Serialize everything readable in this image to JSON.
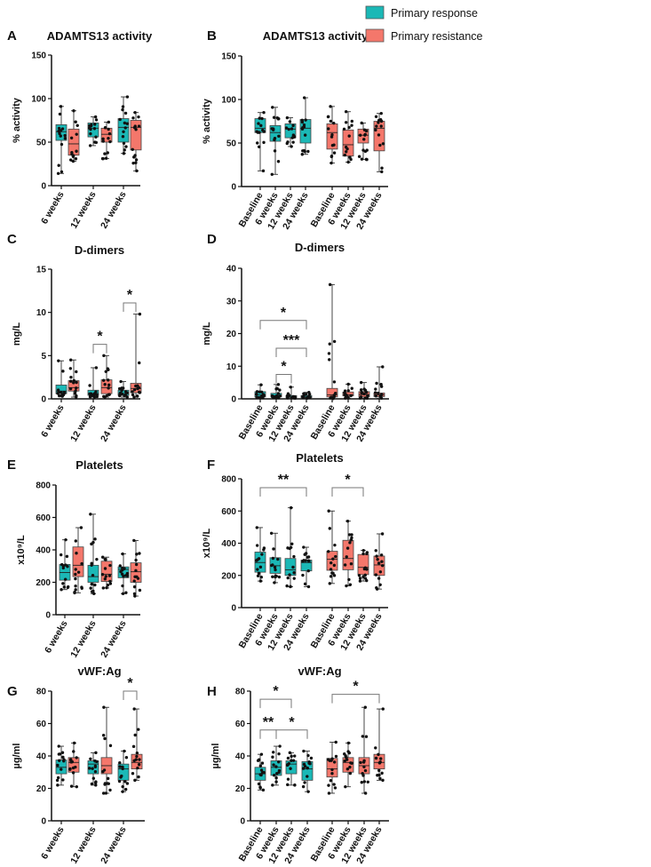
{
  "legend": [
    {
      "label": "Primary response",
      "color": "#1BB8B6"
    },
    {
      "label": "Primary resistance",
      "color": "#F4776B"
    }
  ],
  "chart_data": [
    {
      "panel": "A",
      "type": "box",
      "title": "ADAMTS13 activity",
      "ylabel": "% activity",
      "ylim": [
        0,
        150
      ],
      "yticks": [
        0,
        50,
        100,
        150
      ],
      "boxes": [
        {
          "label": "6 weeks",
          "group": "response",
          "min": 14,
          "q1": 52,
          "median": 62,
          "q3": 70,
          "max": 91
        },
        {
          "label": "",
          "group": "resistance",
          "min": 28,
          "q1": 35,
          "median": 48,
          "q3": 65,
          "max": 86
        },
        {
          "label": "12 weeks",
          "group": "response",
          "min": 46,
          "q1": 56,
          "median": 66,
          "q3": 72,
          "max": 79
        },
        {
          "label": "",
          "group": "resistance",
          "min": 31,
          "q1": 50,
          "median": 59,
          "q3": 66,
          "max": 73
        },
        {
          "label": "24 weeks",
          "group": "response",
          "min": 37,
          "q1": 50,
          "median": 67,
          "q3": 77,
          "max": 102
        },
        {
          "label": "",
          "group": "resistance",
          "min": 17,
          "q1": 41,
          "median": 67,
          "q3": 75,
          "max": 84
        }
      ],
      "significance": []
    },
    {
      "panel": "B",
      "type": "box",
      "title": "ADAMTS13 activity",
      "ylabel": "% activity",
      "ylim": [
        0,
        150
      ],
      "yticks": [
        0,
        50,
        100,
        150
      ],
      "boxes": [
        {
          "label": "Baseline",
          "group": "response",
          "min": 18,
          "q1": 62,
          "median": 67,
          "q3": 78,
          "max": 85
        },
        {
          "label": "6 weeks",
          "group": "response",
          "min": 14,
          "q1": 52,
          "median": 62,
          "q3": 70,
          "max": 91
        },
        {
          "label": "12 weeks",
          "group": "response",
          "min": 46,
          "q1": 56,
          "median": 66,
          "q3": 72,
          "max": 79
        },
        {
          "label": "24 weeks",
          "group": "response",
          "min": 37,
          "q1": 50,
          "median": 67,
          "q3": 77,
          "max": 102
        },
        {
          "label": "Baseline",
          "group": "resistance",
          "min": 27,
          "q1": 43,
          "median": 62,
          "q3": 72,
          "max": 92
        },
        {
          "label": "6 weeks",
          "group": "resistance",
          "min": 28,
          "q1": 35,
          "median": 48,
          "q3": 65,
          "max": 86
        },
        {
          "label": "12 weeks",
          "group": "resistance",
          "min": 31,
          "q1": 50,
          "median": 59,
          "q3": 66,
          "max": 73
        },
        {
          "label": "24 weeks",
          "group": "resistance",
          "min": 17,
          "q1": 41,
          "median": 67,
          "q3": 75,
          "max": 84
        }
      ],
      "significance": []
    },
    {
      "panel": "C",
      "type": "box",
      "title": "D-dimers",
      "ylabel": "mg/L",
      "ylim": [
        0,
        15
      ],
      "yticks": [
        0,
        5,
        10,
        15
      ],
      "boxes": [
        {
          "label": "6 weeks",
          "group": "response",
          "min": 0.3,
          "q1": 0.6,
          "median": 0.9,
          "q3": 1.6,
          "max": 4.4
        },
        {
          "label": "",
          "group": "resistance",
          "min": 0.2,
          "q1": 0.9,
          "median": 1.3,
          "q3": 2.1,
          "max": 4.5
        },
        {
          "label": "12 weeks",
          "group": "response",
          "min": 0.2,
          "q1": 0.4,
          "median": 0.6,
          "q3": 1.0,
          "max": 3.6
        },
        {
          "label": "",
          "group": "resistance",
          "min": 0.2,
          "q1": 0.6,
          "median": 1.3,
          "q3": 2.2,
          "max": 5.0
        },
        {
          "label": "24 weeks",
          "group": "response",
          "min": 0.2,
          "q1": 0.4,
          "median": 0.6,
          "q3": 1.0,
          "max": 2.0
        },
        {
          "label": "",
          "group": "resistance",
          "min": 0.2,
          "q1": 0.7,
          "median": 1.2,
          "q3": 1.8,
          "max": 9.8
        }
      ],
      "significance": [
        {
          "from": 2,
          "to": 3,
          "y": 6.3,
          "label": "*"
        },
        {
          "from": 4,
          "to": 5,
          "y": 11.1,
          "label": "*"
        }
      ]
    },
    {
      "panel": "D",
      "type": "box",
      "title": "D-dimers",
      "ylabel": "mg/L",
      "ylim": [
        0,
        40
      ],
      "yticks": [
        0,
        10,
        20,
        30,
        40
      ],
      "boxes": [
        {
          "label": "Baseline",
          "group": "response",
          "min": 0.3,
          "q1": 0.6,
          "median": 1.2,
          "q3": 2.2,
          "max": 4.3
        },
        {
          "label": "6 weeks",
          "group": "response",
          "min": 0.3,
          "q1": 0.6,
          "median": 1.0,
          "q3": 1.7,
          "max": 4.4
        },
        {
          "label": "12 weeks",
          "group": "response",
          "min": 0.2,
          "q1": 0.4,
          "median": 0.6,
          "q3": 1.0,
          "max": 3.6
        },
        {
          "label": "24 weeks",
          "group": "response",
          "min": 0.2,
          "q1": 0.4,
          "median": 0.6,
          "q3": 1.0,
          "max": 2.0
        },
        {
          "label": "Baseline",
          "group": "resistance",
          "min": 0.1,
          "q1": 0.6,
          "median": 1.2,
          "q3": 3.2,
          "max": 35
        },
        {
          "label": "6 weeks",
          "group": "resistance",
          "min": 0.2,
          "q1": 0.9,
          "median": 1.3,
          "q3": 2.1,
          "max": 4.5
        },
        {
          "label": "12 weeks",
          "group": "resistance",
          "min": 0.2,
          "q1": 0.6,
          "median": 1.3,
          "q3": 2.2,
          "max": 5.0
        },
        {
          "label": "24 weeks",
          "group": "resistance",
          "min": 0.2,
          "q1": 0.7,
          "median": 1.2,
          "q3": 1.8,
          "max": 9.8
        }
      ],
      "significance": [
        {
          "from": 0,
          "to": 3,
          "y": 24,
          "label": "*"
        },
        {
          "from": 1,
          "to": 3,
          "y": 15.5,
          "label": "***"
        },
        {
          "from": 1,
          "to": 2,
          "y": 7.5,
          "label": "*"
        }
      ]
    },
    {
      "panel": "E",
      "type": "box",
      "title": "Platelets",
      "ylabel": "x10⁹/L",
      "ylim": [
        0,
        800
      ],
      "yticks": [
        0,
        200,
        400,
        600,
        800
      ],
      "boxes": [
        {
          "label": "6 weeks",
          "group": "response",
          "min": 155,
          "q1": 213,
          "median": 260,
          "q3": 310,
          "max": 462
        },
        {
          "label": "",
          "group": "resistance",
          "min": 135,
          "q1": 235,
          "median": 305,
          "q3": 418,
          "max": 537
        },
        {
          "label": "12 weeks",
          "group": "response",
          "min": 130,
          "q1": 200,
          "median": 235,
          "q3": 305,
          "max": 620
        },
        {
          "label": "",
          "group": "resistance",
          "min": 165,
          "q1": 205,
          "median": 250,
          "q3": 330,
          "max": 355
        },
        {
          "label": "24 weeks",
          "group": "response",
          "min": 130,
          "q1": 228,
          "median": 280,
          "q3": 295,
          "max": 375
        },
        {
          "label": "",
          "group": "resistance",
          "min": 115,
          "q1": 200,
          "median": 265,
          "q3": 320,
          "max": 458
        }
      ],
      "significance": []
    },
    {
      "panel": "F",
      "type": "box",
      "title": "Platelets",
      "ylabel": "x10⁹/L",
      "ylim": [
        0,
        800
      ],
      "yticks": [
        0,
        200,
        400,
        600,
        800
      ],
      "boxes": [
        {
          "label": "Baseline",
          "group": "response",
          "min": 165,
          "q1": 220,
          "median": 280,
          "q3": 345,
          "max": 497
        },
        {
          "label": "6 weeks",
          "group": "response",
          "min": 155,
          "q1": 213,
          "median": 260,
          "q3": 310,
          "max": 462
        },
        {
          "label": "12 weeks",
          "group": "response",
          "min": 130,
          "q1": 200,
          "median": 235,
          "q3": 305,
          "max": 620
        },
        {
          "label": "24 weeks",
          "group": "response",
          "min": 130,
          "q1": 228,
          "median": 280,
          "q3": 295,
          "max": 375
        },
        {
          "label": "Baseline",
          "group": "resistance",
          "min": 150,
          "q1": 232,
          "median": 300,
          "q3": 350,
          "max": 600
        },
        {
          "label": "6 weeks",
          "group": "resistance",
          "min": 135,
          "q1": 235,
          "median": 305,
          "q3": 418,
          "max": 537
        },
        {
          "label": "12 weeks",
          "group": "resistance",
          "min": 165,
          "q1": 205,
          "median": 250,
          "q3": 330,
          "max": 355
        },
        {
          "label": "24 weeks",
          "group": "resistance",
          "min": 115,
          "q1": 200,
          "median": 265,
          "q3": 320,
          "max": 458
        }
      ],
      "significance": [
        {
          "from": 0,
          "to": 3,
          "y": 745,
          "label": "**"
        },
        {
          "from": 4,
          "to": 6,
          "y": 745,
          "label": "*"
        }
      ]
    },
    {
      "panel": "G",
      "type": "box",
      "title": "vWF:Ag",
      "ylabel": "µg/ml",
      "ylim": [
        0,
        80
      ],
      "yticks": [
        0,
        20,
        40,
        60,
        80
      ],
      "boxes": [
        {
          "label": "6 weeks",
          "group": "response",
          "min": 22,
          "q1": 29,
          "median": 33,
          "q3": 37.5,
          "max": 46
        },
        {
          "label": "",
          "group": "resistance",
          "min": 21,
          "q1": 30,
          "median": 36,
          "q3": 39,
          "max": 48
        },
        {
          "label": "12 weeks",
          "group": "response",
          "min": 22,
          "q1": 29,
          "median": 35,
          "q3": 37,
          "max": 42
        },
        {
          "label": "",
          "group": "resistance",
          "min": 17,
          "q1": 29,
          "median": 34,
          "q3": 39,
          "max": 70
        },
        {
          "label": "24 weeks",
          "group": "response",
          "min": 18,
          "q1": 25,
          "median": 32,
          "q3": 35,
          "max": 43
        },
        {
          "label": "",
          "group": "resistance",
          "min": 25,
          "q1": 32,
          "median": 36,
          "q3": 41,
          "max": 69
        }
      ],
      "significance": [
        {
          "from": 4,
          "to": 5,
          "y": 80,
          "label": "*"
        }
      ]
    },
    {
      "panel": "H",
      "type": "box",
      "title": "vWF:Ag",
      "ylabel": "µg/ml",
      "ylim": [
        0,
        80
      ],
      "yticks": [
        0,
        20,
        40,
        60,
        80
      ],
      "boxes": [
        {
          "label": "Baseline",
          "group": "response",
          "min": 19,
          "q1": 25,
          "median": 29,
          "q3": 33,
          "max": 41
        },
        {
          "label": "6 weeks",
          "group": "response",
          "min": 22,
          "q1": 28,
          "median": 33,
          "q3": 37,
          "max": 46
        },
        {
          "label": "12 weeks",
          "group": "response",
          "min": 22,
          "q1": 29,
          "median": 35,
          "q3": 37,
          "max": 42
        },
        {
          "label": "24 weeks",
          "group": "response",
          "min": 18,
          "q1": 25,
          "median": 32,
          "q3": 36.5,
          "max": 43
        },
        {
          "label": "Baseline",
          "group": "resistance",
          "min": 17,
          "q1": 27,
          "median": 32,
          "q3": 38.5,
          "max": 48.5
        },
        {
          "label": "6 weeks",
          "group": "resistance",
          "min": 21,
          "q1": 30,
          "median": 36,
          "q3": 39,
          "max": 48
        },
        {
          "label": "12 weeks",
          "group": "resistance",
          "min": 17,
          "q1": 29,
          "median": 34,
          "q3": 39,
          "max": 70
        },
        {
          "label": "24 weeks",
          "group": "resistance",
          "min": 25,
          "q1": 32,
          "median": 36,
          "q3": 41,
          "max": 69
        }
      ],
      "significance": [
        {
          "from": 0,
          "to": 2,
          "y": 75,
          "label": "*"
        },
        {
          "from": 0,
          "to": 1,
          "y": 56,
          "label": "**"
        },
        {
          "from": 1,
          "to": 3,
          "y": 56,
          "label": "*"
        },
        {
          "from": 4,
          "to": 7,
          "y": 78,
          "label": "*"
        }
      ]
    }
  ]
}
